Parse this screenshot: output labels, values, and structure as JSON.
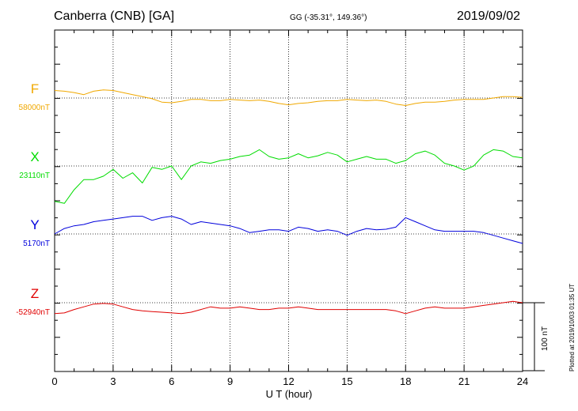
{
  "header": {
    "station": "Canberra (CNB)  [GA]",
    "coords": "GG (-35.31°, 149.36°)",
    "date": "2019/09/02"
  },
  "plotted_note": "Plotted at 2019/10/03 01:35 UT",
  "colors": {
    "F": "#f0a800",
    "X": "#00dc00",
    "Y": "#0000dc",
    "Z": "#e00000"
  },
  "chart_data": {
    "type": "line",
    "title": "Canberra (CNB)  [GA]",
    "xlabel": "U T (hour)",
    "xlim": [
      0,
      24
    ],
    "xticks": [
      0,
      3,
      6,
      9,
      12,
      15,
      18,
      21,
      24
    ],
    "xtick_labels": [
      "0",
      "3",
      "6",
      "9",
      "12",
      "15",
      "18",
      "21",
      "24"
    ],
    "scale_bar_label": "100 nT",
    "scale_bar_nT": 100,
    "grid": true,
    "series": [
      {
        "name": "F",
        "baseline_label": "58000nT",
        "baseline_nT": 58000,
        "x": [
          0,
          0.5,
          1,
          1.5,
          2,
          2.5,
          3,
          3.5,
          4,
          4.5,
          5,
          5.5,
          6,
          6.5,
          7,
          7.5,
          8,
          8.5,
          9,
          9.5,
          10,
          10.5,
          11,
          11.5,
          12,
          12.5,
          13,
          13.5,
          14,
          14.5,
          15,
          15.5,
          16,
          16.5,
          17,
          17.5,
          18,
          18.5,
          19,
          19.5,
          20,
          20.5,
          21,
          21.5,
          22,
          22.5,
          23,
          23.5,
          24
        ],
        "y": [
          58011,
          58010,
          58008,
          58005,
          58010,
          58012,
          58011,
          58008,
          58005,
          58002,
          57999,
          57994,
          57993,
          57995,
          57998,
          57998,
          57996,
          57996,
          57998,
          57997,
          57996,
          57997,
          57995,
          57992,
          57990,
          57992,
          57993,
          57995,
          57996,
          57996,
          57998,
          57997,
          57996,
          57997,
          57995,
          57991,
          57989,
          57992,
          57994,
          57994,
          57995,
          57997,
          57998,
          57998,
          57998,
          58000,
          58002,
          58002,
          58001
        ]
      },
      {
        "name": "X",
        "baseline_label": "23110nT",
        "baseline_nT": 23110,
        "x": [
          0,
          0.5,
          1,
          1.5,
          2,
          2.5,
          3,
          3.5,
          4,
          4.5,
          5,
          5.5,
          6,
          6.5,
          7,
          7.5,
          8,
          8.5,
          9,
          9.5,
          10,
          10.5,
          11,
          11.5,
          12,
          12.5,
          13,
          13.5,
          14,
          14.5,
          15,
          15.5,
          16,
          16.5,
          17,
          17.5,
          18,
          18.5,
          19,
          19.5,
          20,
          20.5,
          21,
          21.5,
          22,
          22.5,
          23,
          23.5,
          24
        ],
        "y": [
          23058,
          23055,
          23075,
          23090,
          23090,
          23095,
          23105,
          23092,
          23100,
          23085,
          23108,
          23105,
          23110,
          23090,
          23110,
          23116,
          23114,
          23118,
          23120,
          23124,
          23126,
          23134,
          23124,
          23120,
          23122,
          23128,
          23122,
          23125,
          23130,
          23126,
          23116,
          23120,
          23124,
          23120,
          23120,
          23114,
          23118,
          23128,
          23132,
          23126,
          23114,
          23110,
          23104,
          23110,
          23126,
          23134,
          23132,
          23124,
          23122
        ]
      },
      {
        "name": "Y",
        "baseline_label": "5170nT",
        "baseline_nT": 5170,
        "x": [
          0,
          0.5,
          1,
          1.5,
          2,
          2.5,
          3,
          3.5,
          4,
          4.5,
          5,
          5.5,
          6,
          6.5,
          7,
          7.5,
          8,
          8.5,
          9,
          9.5,
          10,
          10.5,
          11,
          11.5,
          12,
          12.5,
          13,
          13.5,
          14,
          14.5,
          15,
          15.5,
          16,
          16.5,
          17,
          17.5,
          18,
          18.5,
          19,
          19.5,
          20,
          20.5,
          21,
          21.5,
          22,
          22.5,
          23,
          23.5,
          24
        ],
        "y": [
          5170,
          5178,
          5182,
          5184,
          5188,
          5190,
          5192,
          5194,
          5196,
          5196,
          5190,
          5194,
          5196,
          5192,
          5184,
          5188,
          5186,
          5184,
          5182,
          5178,
          5172,
          5174,
          5176,
          5176,
          5174,
          5180,
          5178,
          5174,
          5176,
          5174,
          5168,
          5174,
          5178,
          5176,
          5177,
          5180,
          5194,
          5188,
          5182,
          5176,
          5174,
          5174,
          5174,
          5174,
          5172,
          5168,
          5164,
          5160,
          5156
        ]
      },
      {
        "name": "Z",
        "baseline_label": "-52940nT",
        "baseline_nT": -52940,
        "x": [
          0,
          0.5,
          1,
          1.5,
          2,
          2.5,
          3,
          3.5,
          4,
          4.5,
          5,
          5.5,
          6,
          6.5,
          7,
          7.5,
          8,
          8.5,
          9,
          9.5,
          10,
          10.5,
          11,
          11.5,
          12,
          12.5,
          13,
          13.5,
          14,
          14.5,
          15,
          15.5,
          16,
          16.5,
          17,
          17.5,
          18,
          18.5,
          19,
          19.5,
          20,
          20.5,
          21,
          21.5,
          22,
          22.5,
          23,
          23.5,
          24
        ],
        "y": [
          -52956,
          -52955,
          -52950,
          -52946,
          -52942,
          -52941,
          -52942,
          -52946,
          -52950,
          -52952,
          -52953,
          -52954,
          -52955,
          -52956,
          -52954,
          -52950,
          -52946,
          -52948,
          -52948,
          -52946,
          -52948,
          -52950,
          -52950,
          -52948,
          -52948,
          -52946,
          -52948,
          -52950,
          -52950,
          -52950,
          -52950,
          -52950,
          -52950,
          -52950,
          -52950,
          -52952,
          -52956,
          -52952,
          -52948,
          -52946,
          -52948,
          -52948,
          -52948,
          -52946,
          -52944,
          -52942,
          -52940,
          -52938,
          -52940
        ]
      }
    ]
  }
}
